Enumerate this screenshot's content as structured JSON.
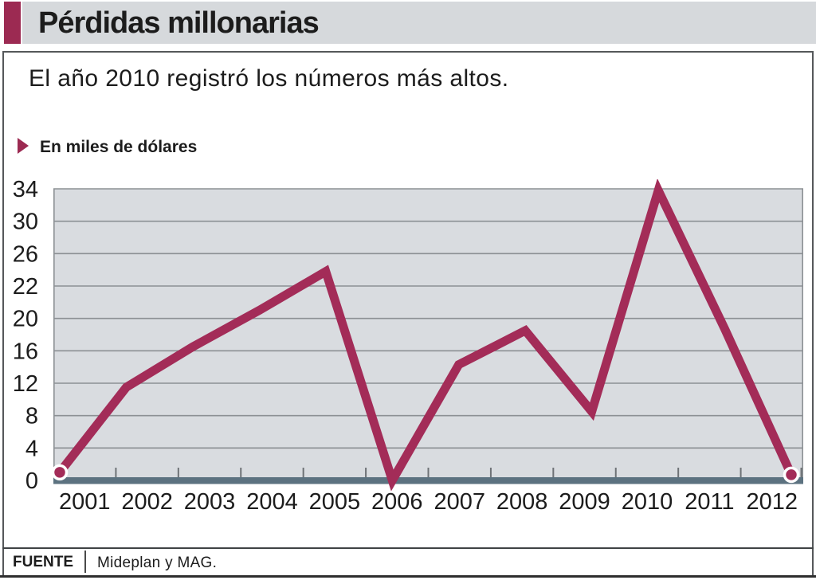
{
  "header": {
    "title": "Pérdidas millonarias"
  },
  "subtitle": "El año 2010 registró los números más altos.",
  "kicker": {
    "label": "En miles de dólares"
  },
  "footer": {
    "source_label": "FUENTE",
    "source_value": "Mideplan y  MAG."
  },
  "colors": {
    "accent": "#9C2A52",
    "line": "#A32C58",
    "plot_bg": "#D9DCE0",
    "gridline": "#8C9094",
    "axis_bar": "#5C7280",
    "tick": "#6E7276",
    "header_bg": "#D6D9DC",
    "rule": "#2E2E2E",
    "border": "#55585A",
    "marker_ring": "#FFFFFF"
  },
  "chart_data": {
    "type": "line",
    "title": "Pérdidas millonarias",
    "subtitle": "El año 2010 registró los números más altos.",
    "units_label": "En miles de dólares",
    "categories": [
      "2001",
      "2002",
      "2003",
      "2004",
      "2005",
      "2006",
      "2007",
      "2008",
      "2009",
      "2010",
      "2011",
      "2012"
    ],
    "values": [
      1.0,
      11.5,
      16.5,
      20.5,
      23.8,
      0,
      14.3,
      18.5,
      8.5,
      33.8,
      18.7,
      0.7
    ],
    "y_tick_labels": [
      "34",
      "30",
      "26",
      "22",
      "20",
      "16",
      "12",
      "8",
      "4",
      "0"
    ],
    "y_axis_note": "tick labels evenly spaced despite non-uniform increments (…26, 22, 20, 16…)",
    "grid": true,
    "legend": "none",
    "endpoint_markers": [
      "2001",
      "2012"
    ],
    "source": "Mideplan y  MAG."
  }
}
